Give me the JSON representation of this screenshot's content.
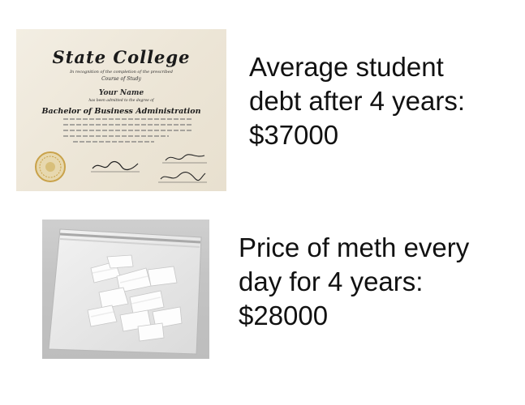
{
  "diploma": {
    "school": "State College",
    "line_recognition": "In recognition of the completion of the prescribed",
    "line_course": "Course of Study",
    "name": "Your Name",
    "line_admitted": "has been admitted to the degree of",
    "degree": "Bachelor of Business Administration"
  },
  "caption_debt": {
    "line1": "Average student",
    "line2": "debt after 4 years:",
    "line3": "$37000"
  },
  "caption_meth": {
    "line1": "Price of meth every",
    "line2": "day for 4 years:",
    "line3": "$28000"
  },
  "colors": {
    "diploma_paper": "#ece5d6",
    "ink": "#1a1a1a",
    "seal_gold": "#c9a24a",
    "bag_background": "#c4c4c4",
    "text": "#111111"
  }
}
